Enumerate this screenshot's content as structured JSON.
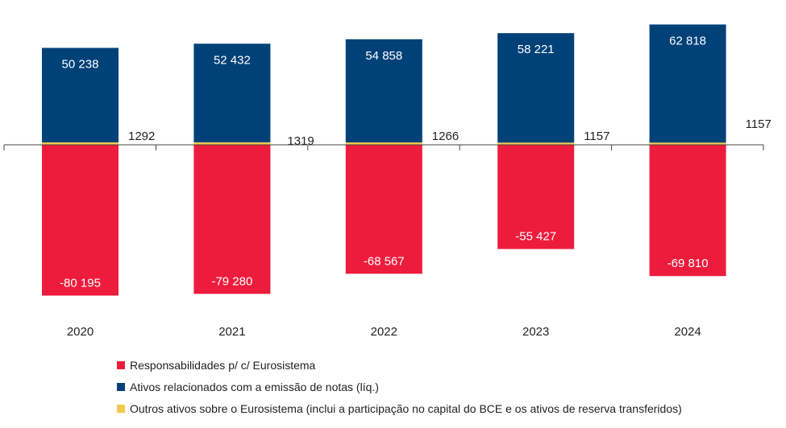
{
  "chart_data": {
    "type": "bar",
    "stacked": true,
    "categories": [
      "2020",
      "2021",
      "2022",
      "2023",
      "2024"
    ],
    "series": [
      {
        "name": "Responsabilidades p/ c/ Eurosistema",
        "color": "#EE1C3C",
        "values": [
          -80195,
          -79280,
          -68567,
          -55427,
          -69810
        ],
        "labels": [
          "-80 195",
          "-79 280",
          "-68 567",
          "-55 427",
          "-69 810"
        ]
      },
      {
        "name": "Ativos relacionados com a emissão de notas (líq.)",
        "color": "#004178",
        "values": [
          50238,
          52432,
          54858,
          58221,
          62818
        ],
        "labels": [
          "50 238",
          "52 432",
          "54 858",
          "58 221",
          "62 818"
        ]
      },
      {
        "name": "Outros ativos sobre o Eurosistema (inclui a participação no capital do BCE e os ativos de reserva transferidos)",
        "color": "#F2C94C",
        "values": [
          1292,
          1319,
          1266,
          1157,
          1157
        ],
        "labels": [
          "1292",
          "1319",
          "1266",
          "1157",
          "1157"
        ]
      }
    ],
    "ylim": [
      -86000,
      74000
    ],
    "grid": false,
    "legend_position": "bottom-left"
  }
}
